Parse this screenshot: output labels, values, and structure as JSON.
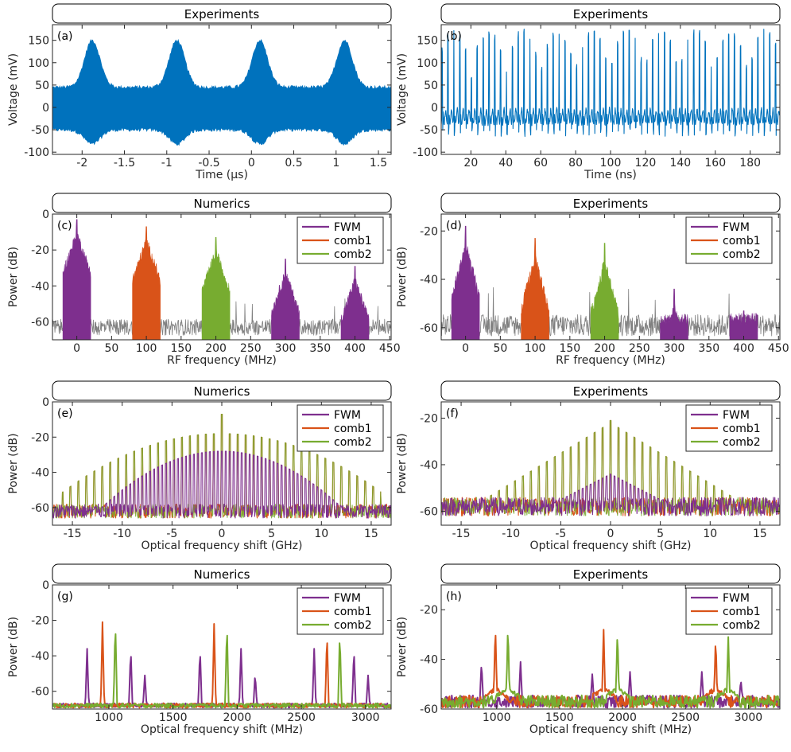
{
  "colors": {
    "blue": "#0072BD",
    "fwm": "#7E2F8E",
    "comb1": "#D95319",
    "comb2": "#77AC30",
    "noise": "#808080"
  },
  "chart_data": [
    {
      "id": "a",
      "type": "line",
      "panel_label": "(a)",
      "header": "Experiments",
      "xlabel": "Time (µs)",
      "ylabel": "Voltage (mV)",
      "xlim": [
        -2.35,
        1.65
      ],
      "ylim": [
        -105,
        185
      ],
      "xticks": [
        -2,
        -1.5,
        -1,
        -0.5,
        0,
        0.5,
        1,
        1.5
      ],
      "xtick_labels": [
        "-2",
        "-1.5",
        "-1",
        "-0.5",
        "0",
        "0.5",
        "1",
        "1.5"
      ],
      "yticks": [
        -100,
        -50,
        0,
        50,
        100,
        150
      ],
      "ytick_labels": [
        "-100",
        "-50",
        "0",
        "50",
        "100",
        "150"
      ],
      "envelope": {
        "peaks_x": [
          -1.88,
          -0.88,
          0.1,
          1.1
        ],
        "upper_peak": 150,
        "upper_base": 45,
        "lower_peak": -82,
        "lower_base": -50
      },
      "legend": []
    },
    {
      "id": "b",
      "type": "line",
      "panel_label": "(b)",
      "header": "Experiments",
      "xlabel": "Time (ns)",
      "ylabel": "Voltage (mV)",
      "xlim": [
        3,
        197
      ],
      "ylim": [
        -105,
        185
      ],
      "xticks": [
        20,
        40,
        60,
        80,
        100,
        120,
        140,
        160,
        180
      ],
      "xtick_labels": [
        "20",
        "40",
        "60",
        "80",
        "100",
        "120",
        "140",
        "160",
        "180"
      ],
      "yticks": [
        -100,
        -50,
        0,
        50,
        100,
        150
      ],
      "ytick_labels": [
        "-100",
        "-50",
        "0",
        "50",
        "100",
        "150"
      ],
      "pulse_period_ns": 3.35,
      "max_peak": 180,
      "min_trough": -65,
      "legend": []
    },
    {
      "id": "c",
      "type": "spectrum",
      "panel_label": "(c)",
      "header": "Numerics",
      "xlabel": "RF frequency (MHz)",
      "ylabel": "Power (dB)",
      "xlim": [
        -35,
        452
      ],
      "ylim": [
        -70,
        0
      ],
      "xticks": [
        0,
        50,
        100,
        150,
        200,
        250,
        300,
        350,
        400,
        450
      ],
      "xtick_labels": [
        "0",
        "50",
        "100",
        "150",
        "200",
        "250",
        "300",
        "350",
        "400",
        "450"
      ],
      "yticks": [
        -60,
        -40,
        -20,
        0
      ],
      "ytick_labels": [
        "-60",
        "-40",
        "-20",
        "0"
      ],
      "noise_floor": -63,
      "groups": [
        {
          "center": 0,
          "peak": -3,
          "series": "FWM"
        },
        {
          "center": 100,
          "peak": -7,
          "series": "comb1"
        },
        {
          "center": 200,
          "peak": -13,
          "series": "comb2"
        },
        {
          "center": 300,
          "peak": -25,
          "series": "FWM"
        },
        {
          "center": 400,
          "peak": -29,
          "series": "FWM"
        }
      ],
      "legend": [
        "FWM",
        "comb1",
        "comb2"
      ]
    },
    {
      "id": "d",
      "type": "spectrum",
      "panel_label": "(d)",
      "header": "Experiments",
      "xlabel": "RF frequency (MHz)",
      "ylabel": "Power (dB)",
      "xlim": [
        -35,
        452
      ],
      "ylim": [
        -65,
        -13
      ],
      "xticks": [
        0,
        50,
        100,
        150,
        200,
        250,
        300,
        350,
        400,
        450
      ],
      "xtick_labels": [
        "0",
        "50",
        "100",
        "150",
        "200",
        "250",
        "300",
        "350",
        "400",
        "450"
      ],
      "yticks": [
        -60,
        -40,
        -20
      ],
      "ytick_labels": [
        "-60",
        "-40",
        "-20"
      ],
      "noise_floor": -59,
      "groups": [
        {
          "center": 0,
          "peak": -18,
          "series": "FWM"
        },
        {
          "center": 100,
          "peak": -23,
          "series": "comb1"
        },
        {
          "center": 200,
          "peak": -25,
          "series": "comb2"
        },
        {
          "center": 300,
          "peak": -44,
          "series": "FWM"
        },
        {
          "center": 400,
          "peak": -53,
          "series": "FWM"
        }
      ],
      "legend": [
        "FWM",
        "comb1",
        "comb2"
      ]
    },
    {
      "id": "e",
      "type": "comb",
      "panel_label": "(e)",
      "header": "Numerics",
      "xlabel": "Optical frequency shift (GHz)",
      "ylabel": "Power (dB)",
      "xlim": [
        -17,
        17
      ],
      "ylim": [
        -70,
        0
      ],
      "xticks": [
        -15,
        -10,
        -5,
        0,
        5,
        10,
        15
      ],
      "xtick_labels": [
        "-15",
        "-10",
        "-5",
        "0",
        "5",
        "10",
        "15"
      ],
      "yticks": [
        -60,
        -40,
        -20,
        0
      ],
      "ytick_labels": [
        "-60",
        "-40",
        "-20",
        "0"
      ],
      "comb_peak": -18,
      "fwm_peak": -28,
      "center_peak": -7,
      "legend": [
        "FWM",
        "comb1",
        "comb2"
      ]
    },
    {
      "id": "f",
      "type": "comb",
      "panel_label": "(f)",
      "header": "Experiments",
      "xlabel": "Optical frequency shift (GHz)",
      "ylabel": "Power (dB)",
      "xlim": [
        -17,
        17
      ],
      "ylim": [
        -66,
        -13
      ],
      "xticks": [
        -15,
        -10,
        -5,
        0,
        5,
        10,
        15
      ],
      "xtick_labels": [
        "-15",
        "-10",
        "-5",
        "0",
        "5",
        "10",
        "15"
      ],
      "yticks": [
        -60,
        -40,
        -20
      ],
      "ytick_labels": [
        "-60",
        "-40",
        "-20"
      ],
      "comb_peak": -22,
      "fwm_peak": -44,
      "center_peak": -21,
      "legend": [
        "FWM",
        "comb1",
        "comb2"
      ]
    },
    {
      "id": "g",
      "type": "zoom",
      "panel_label": "(g)",
      "header": "Numerics",
      "xlabel": "Optical frequency shift (MHz)",
      "ylabel": "Power (dB)",
      "xlim": [
        560,
        3200
      ],
      "ylim": [
        -70,
        0
      ],
      "xticks": [
        1000,
        1500,
        2000,
        2500,
        3000
      ],
      "xtick_labels": [
        "1000",
        "1500",
        "2000",
        "2500",
        "3000"
      ],
      "yticks": [
        -60,
        -40,
        -20,
        0
      ],
      "ytick_labels": [
        "-60",
        "-40",
        "-20",
        "0"
      ],
      "floor": -68,
      "peaks": [
        {
          "x": 830,
          "y": -36,
          "series": "FWM"
        },
        {
          "x": 950,
          "y": -21,
          "series": "comb1"
        },
        {
          "x": 1050,
          "y": -21,
          "series": "comb2"
        },
        {
          "x": 1170,
          "y": -36,
          "series": "FWM"
        },
        {
          "x": 1280,
          "y": -51,
          "series": "FWM"
        },
        {
          "x": 1710,
          "y": -36,
          "series": "FWM"
        },
        {
          "x": 1820,
          "y": -22,
          "series": "comb1"
        },
        {
          "x": 1920,
          "y": -22,
          "series": "comb2"
        },
        {
          "x": 2030,
          "y": -36,
          "series": "FWM"
        },
        {
          "x": 2140,
          "y": -50,
          "series": "FWM"
        },
        {
          "x": 2600,
          "y": -36,
          "series": "FWM"
        },
        {
          "x": 2700,
          "y": -27,
          "series": "comb1"
        },
        {
          "x": 2800,
          "y": -27,
          "series": "comb2"
        },
        {
          "x": 2910,
          "y": -36,
          "series": "FWM"
        },
        {
          "x": 3020,
          "y": -51,
          "series": "FWM"
        }
      ],
      "legend": [
        "FWM",
        "comb1",
        "comb2"
      ]
    },
    {
      "id": "h",
      "type": "zoom",
      "panel_label": "(h)",
      "header": "Experiments",
      "xlabel": "Optical frequency shift (MHz)",
      "ylabel": "Power (dB)",
      "xlim": [
        560,
        3250
      ],
      "ylim": [
        -60,
        -10
      ],
      "xticks": [
        1000,
        1500,
        2000,
        2500,
        3000
      ],
      "xtick_labels": [
        "1000",
        "1500",
        "2000",
        "2500",
        "3000"
      ],
      "yticks": [
        -60,
        -40,
        -20
      ],
      "ytick_labels": [
        "-60",
        "-40",
        "-20"
      ],
      "floor": -57,
      "peaks": [
        {
          "x": 880,
          "y": -41,
          "series": "FWM"
        },
        {
          "x": 990,
          "y": -26,
          "series": "comb1"
        },
        {
          "x": 1090,
          "y": -26,
          "series": "comb2"
        },
        {
          "x": 1190,
          "y": -41,
          "series": "FWM"
        },
        {
          "x": 1760,
          "y": -46,
          "series": "FWM"
        },
        {
          "x": 1850,
          "y": -28,
          "series": "comb1"
        },
        {
          "x": 1960,
          "y": -28,
          "series": "comb2"
        },
        {
          "x": 2060,
          "y": -45,
          "series": "FWM"
        },
        {
          "x": 2630,
          "y": -45,
          "series": "FWM"
        },
        {
          "x": 2740,
          "y": -31,
          "series": "comb1"
        },
        {
          "x": 2840,
          "y": -31,
          "series": "comb2"
        },
        {
          "x": 2940,
          "y": -48,
          "series": "FWM"
        }
      ],
      "legend": [
        "FWM",
        "comb1",
        "comb2"
      ]
    }
  ]
}
